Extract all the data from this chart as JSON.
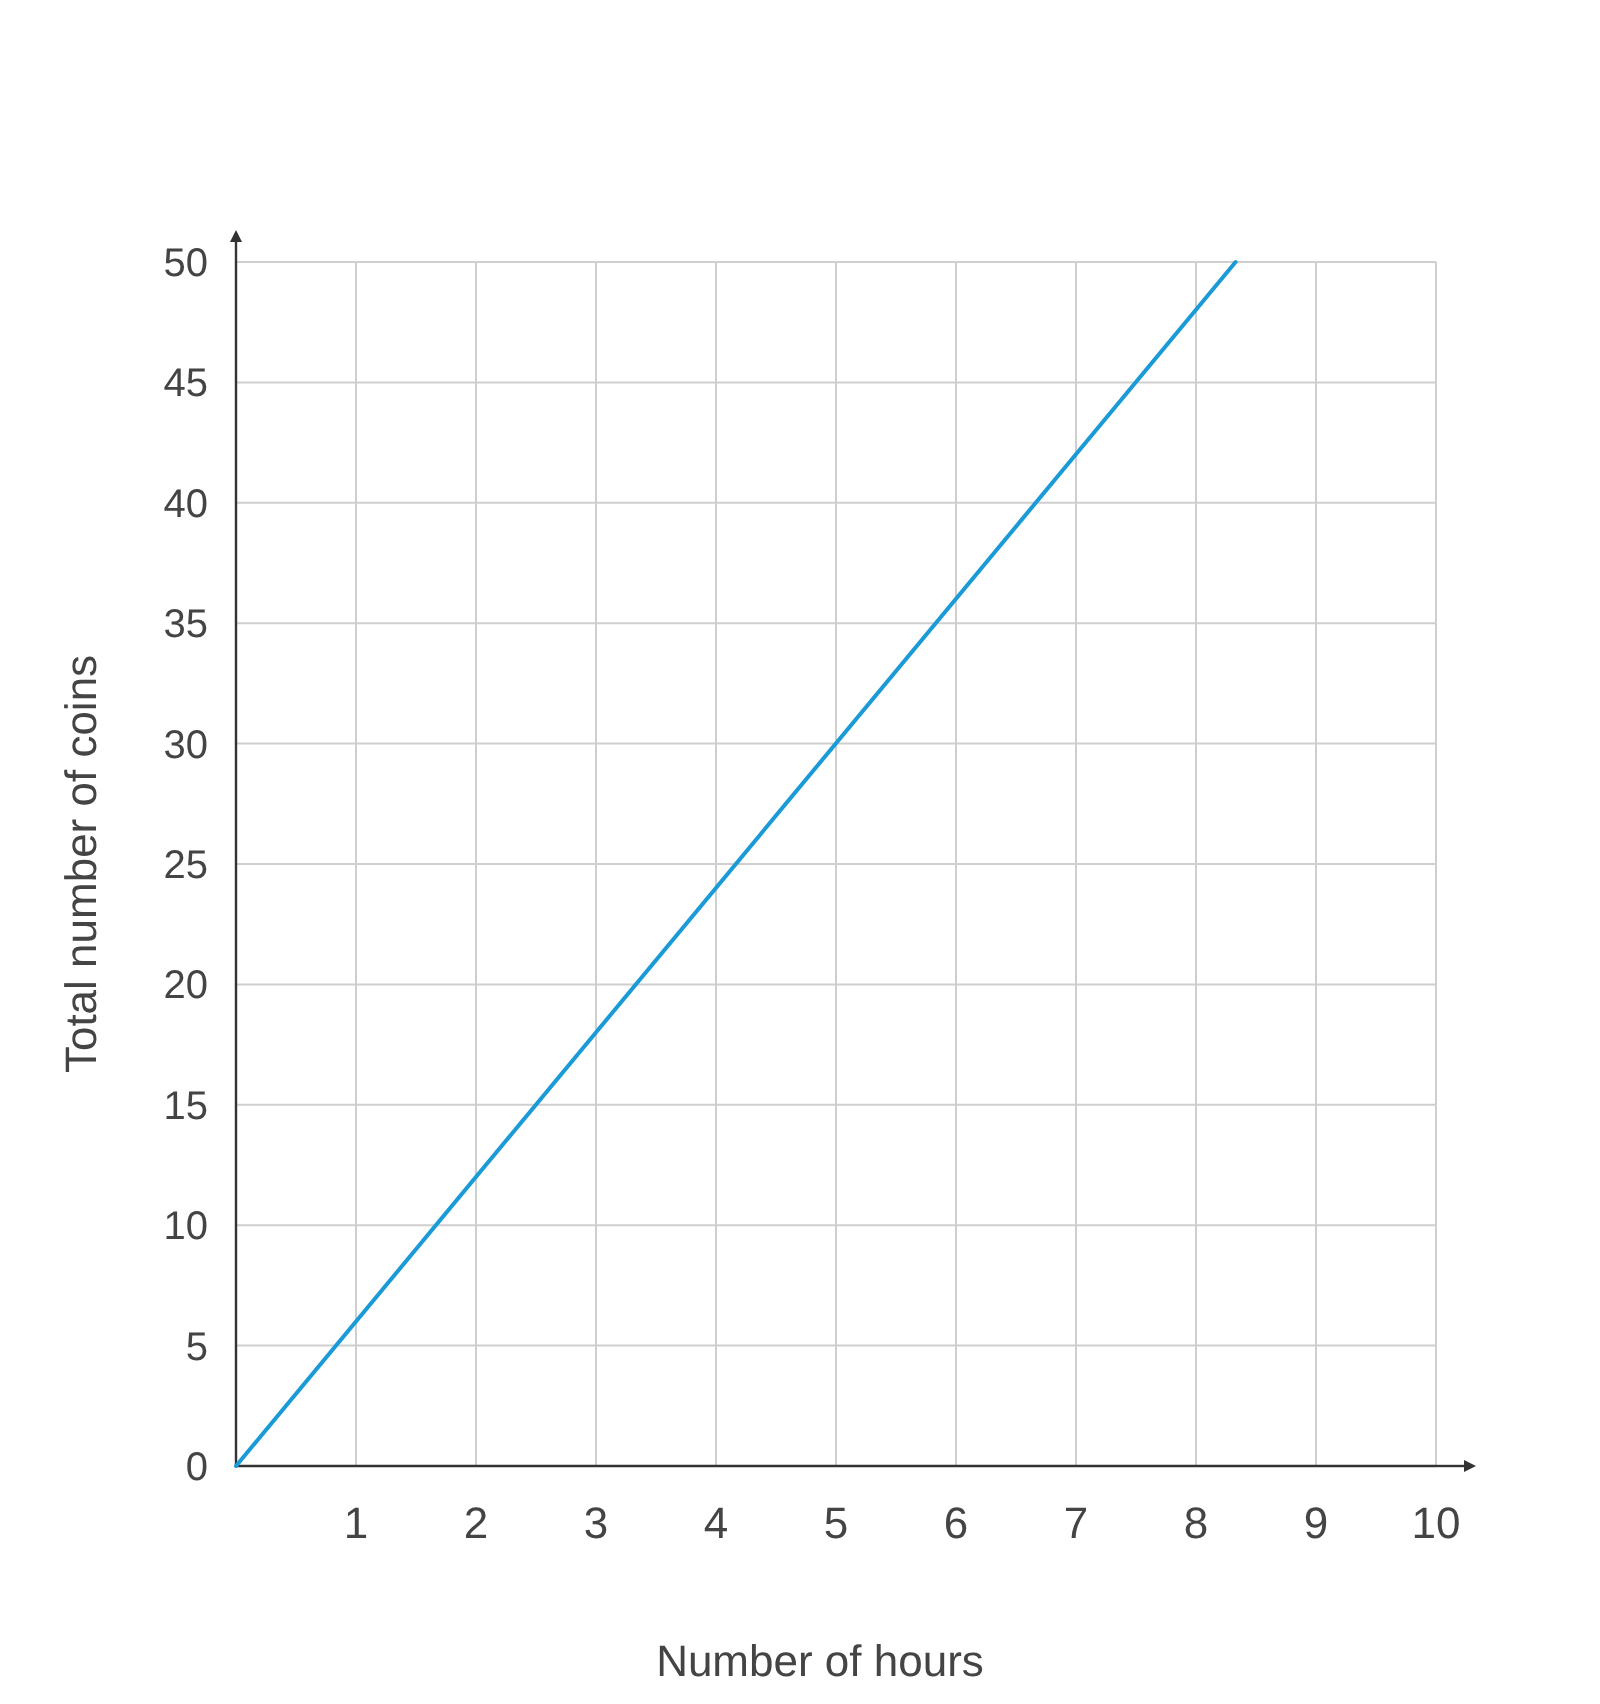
{
  "chart_data": {
    "type": "line",
    "xlabel": "Number of hours",
    "ylabel": "Total number of coins",
    "x": [
      0,
      8.33
    ],
    "series": [
      {
        "color": "#1a9bd7",
        "values": [
          0,
          50
        ]
      }
    ],
    "xlim": [
      0,
      10
    ],
    "xticks": [
      1,
      2,
      3,
      4,
      5,
      6,
      7,
      8,
      9,
      10
    ],
    "ylim": [
      0,
      50
    ],
    "yticks": [
      0,
      5,
      10,
      15,
      20,
      25,
      30,
      35,
      40,
      45,
      50
    ],
    "grid": true,
    "marker": "none",
    "line_style": "solid"
  }
}
